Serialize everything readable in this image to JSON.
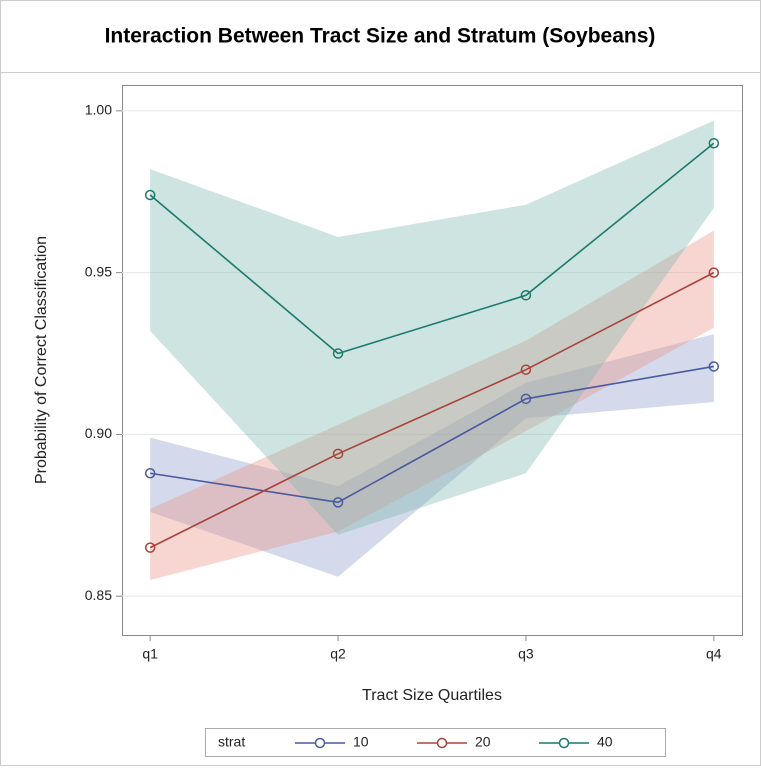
{
  "chart_data": {
    "type": "line",
    "title": "Interaction Between Tract Size and Stratum (Soybeans)",
    "x_label": "Tract Size Quartiles",
    "y_label": "Probability of Correct Classification",
    "categories": [
      "q1",
      "q2",
      "q3",
      "q4"
    ],
    "legend_title": "strat",
    "series": [
      {
        "name": "10",
        "color": "#4a5a9e",
        "band_color": "#8e9acb",
        "values": [
          0.888,
          0.879,
          0.911,
          0.921
        ],
        "lower": [
          0.876,
          0.856,
          0.905,
          0.91
        ],
        "upper": [
          0.899,
          0.884,
          0.916,
          0.931
        ]
      },
      {
        "name": "20",
        "color": "#a8433a",
        "band_color": "#e9928a",
        "values": [
          0.865,
          0.894,
          0.92,
          0.95
        ],
        "lower": [
          0.855,
          0.87,
          0.901,
          0.933
        ],
        "upper": [
          0.877,
          0.903,
          0.929,
          0.963
        ]
      },
      {
        "name": "40",
        "color": "#1a7a6e",
        "band_color": "#7fb8ae",
        "values": [
          0.974,
          0.925,
          0.943,
          0.99
        ],
        "lower": [
          0.932,
          0.869,
          0.888,
          0.97
        ],
        "upper": [
          0.982,
          0.961,
          0.971,
          0.997
        ]
      }
    ],
    "ylim": [
      0.838,
      1.008
    ],
    "yticks": [
      {
        "value": 0.85,
        "label": "0.85"
      },
      {
        "value": 0.9,
        "label": "0.90"
      },
      0.95,
      {
        "value": 1,
        "label": "1.00"
      }
    ],
    "grid": true
  }
}
